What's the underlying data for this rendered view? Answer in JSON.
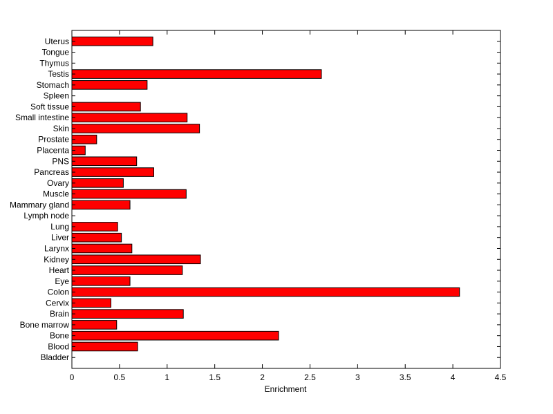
{
  "chart_data": {
    "type": "bar",
    "orientation": "horizontal",
    "categories": [
      "Bladder",
      "Blood",
      "Bone",
      "Bone marrow",
      "Brain",
      "Cervix",
      "Colon",
      "Eye",
      "Heart",
      "Kidney",
      "Larynx",
      "Liver",
      "Lung",
      "Lymph node",
      "Mammary gland",
      "Muscle",
      "Ovary",
      "Pancreas",
      "PNS",
      "Placenta",
      "Prostate",
      "Skin",
      "Small intestine",
      "Soft tissue",
      "Spleen",
      "Stomach",
      "Testis",
      "Thymus",
      "Tongue",
      "Uterus"
    ],
    "values": [
      0,
      0.69,
      2.17,
      0.47,
      1.17,
      0.41,
      4.07,
      0.61,
      1.16,
      1.35,
      0.63,
      0.52,
      0.48,
      0,
      0.61,
      1.2,
      0.54,
      0.86,
      0.68,
      0.14,
      0.26,
      1.34,
      1.21,
      0.72,
      0,
      0.79,
      2.62,
      0,
      0,
      0.85
    ],
    "title": "",
    "xlabel": "Enrichment",
    "ylabel": "",
    "xlim": [
      0,
      4.5
    ],
    "xticks": [
      "0",
      "0.5",
      "1",
      "1.5",
      "2",
      "2.5",
      "3",
      "3.5",
      "4",
      "4.5"
    ],
    "grid": false,
    "legend": "none",
    "bar_color": "#ff0000",
    "edge_color": "#000000"
  }
}
